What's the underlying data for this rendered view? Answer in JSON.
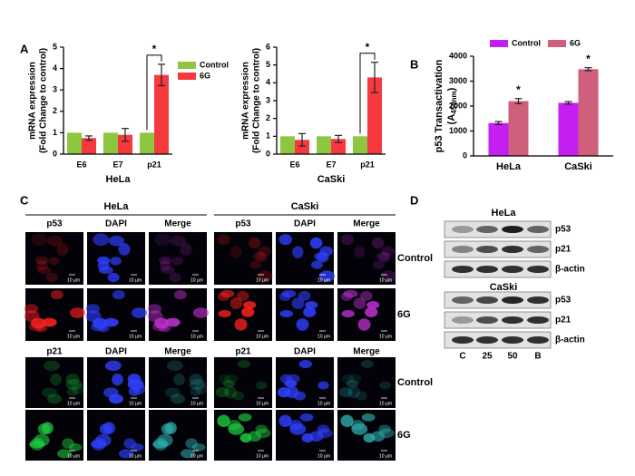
{
  "panel_labels": [
    "A",
    "B",
    "C",
    "D"
  ],
  "chart_data": [
    {
      "type": "bar",
      "x_label": "HeLa",
      "y_label": [
        "mRNA expression",
        "(Fold Change to control)"
      ],
      "categories": [
        "E6",
        "E7",
        "p21"
      ],
      "series": [
        {
          "name": "Control",
          "color": "#8dc63f",
          "values": [
            1,
            1,
            1
          ]
        },
        {
          "name": "6G",
          "color": "#f5393c",
          "values": [
            0.75,
            0.9,
            3.7
          ],
          "errors": [
            0.1,
            0.3,
            0.5
          ]
        }
      ],
      "ylim": [
        0,
        5
      ],
      "yticks": [
        0,
        1,
        2,
        3,
        4,
        5
      ],
      "annotation": "*",
      "legend": "upper right"
    },
    {
      "type": "bar",
      "x_label": "CaSki",
      "y_label": [
        "mRNA expression",
        "(Fold Change to control)"
      ],
      "categories": [
        "E6",
        "E7",
        "p21"
      ],
      "series": [
        {
          "name": "Control",
          "color": "#8dc63f",
          "values": [
            1,
            1,
            1
          ]
        },
        {
          "name": "6G",
          "color": "#f5393c",
          "values": [
            0.8,
            0.85,
            4.3
          ],
          "errors": [
            0.35,
            0.2,
            0.85
          ]
        }
      ],
      "ylim": [
        0,
        6
      ],
      "yticks": [
        0,
        1,
        2,
        3,
        4,
        5,
        6
      ],
      "annotation": "*"
    },
    {
      "type": "bar",
      "y_label": [
        "p53 Transactivation",
        "(A",
        "450nm",
        ")"
      ],
      "categories": [
        "HeLa",
        "CaSki"
      ],
      "series": [
        {
          "name": "Control",
          "color": "#c41ef0",
          "values": [
            1320,
            2130
          ],
          "errors": [
            60,
            50
          ]
        },
        {
          "name": "6G",
          "color": "#cf5f7b",
          "values": [
            2200,
            3480
          ],
          "errors": [
            100,
            60
          ]
        }
      ],
      "ylim": [
        0,
        4000
      ],
      "yticks": [
        0,
        1000,
        2000,
        3000,
        4000
      ],
      "annotation": "*",
      "legend": "top"
    }
  ],
  "microscopy": {
    "groups": [
      "HeLa",
      "CaSki"
    ],
    "channels_top": [
      "p53",
      "DAPI",
      "Merge"
    ],
    "channels_bottom": [
      "p21",
      "DAPI",
      "Merge"
    ],
    "conditions": [
      "Control",
      "6G"
    ],
    "scale_bar": "10 µm"
  },
  "western_blot": {
    "panels": [
      {
        "title": "HeLa",
        "bands": [
          "p53",
          "p21",
          "β-actin"
        ]
      },
      {
        "title": "CaSki",
        "bands": [
          "p53",
          "p21",
          "β-actin"
        ]
      }
    ],
    "lanes": [
      "C",
      "25",
      "50",
      "B"
    ]
  }
}
